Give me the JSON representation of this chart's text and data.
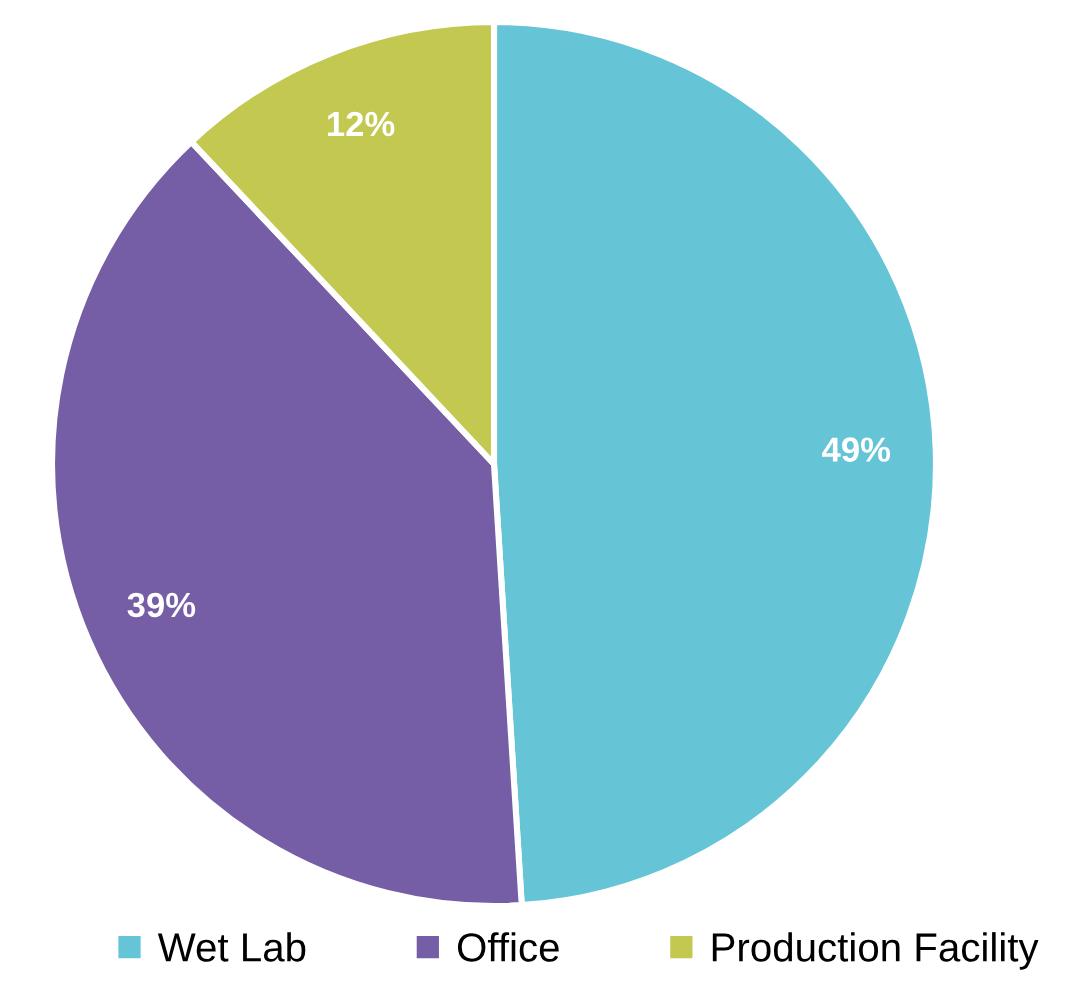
{
  "chart_data": {
    "type": "pie",
    "categories": [
      "Wet Lab",
      "Office",
      "Production Facility"
    ],
    "values": [
      49,
      39,
      12
    ],
    "colors": [
      "#65c5d7",
      "#755ea6",
      "#c3c851"
    ],
    "value_labels": [
      "49%",
      "39%",
      "12%"
    ],
    "legend": "bottom"
  }
}
